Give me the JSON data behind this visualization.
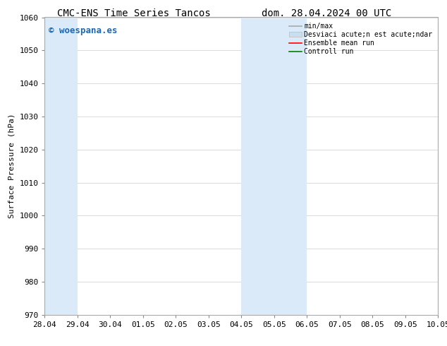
{
  "title_left": "CMC-ENS Time Series Tancos",
  "title_right": "dom. 28.04.2024 00 UTC",
  "ylabel": "Surface Pressure (hPa)",
  "ylim": [
    970,
    1060
  ],
  "yticks": [
    970,
    980,
    990,
    1000,
    1010,
    1020,
    1030,
    1040,
    1050,
    1060
  ],
  "xlim_start": 0,
  "xlim_end": 12,
  "xtick_labels": [
    "28.04",
    "29.04",
    "30.04",
    "01.05",
    "02.05",
    "03.05",
    "04.05",
    "05.05",
    "06.05",
    "07.05",
    "08.05",
    "09.05",
    "10.05"
  ],
  "xtick_positions": [
    0,
    1,
    2,
    3,
    4,
    5,
    6,
    7,
    8,
    9,
    10,
    11,
    12
  ],
  "shaded_regions": [
    {
      "xmin": 0.0,
      "xmax": 1.0,
      "color": "#daeaf8"
    },
    {
      "xmin": 6.0,
      "xmax": 8.0,
      "color": "#daeaf8"
    }
  ],
  "watermark_text": "© woespana.es",
  "watermark_color": "#1a6ab5",
  "legend_labels": [
    "min/max",
    "Desviaci acute;n est acute;ndar",
    "Ensemble mean run",
    "Controll run"
  ],
  "legend_line_colors": [
    "#aaaaaa",
    "#c8dff0",
    "#ff0000",
    "#008000"
  ],
  "bg_color": "#ffffff",
  "grid_color": "#cccccc",
  "title_fontsize": 10,
  "label_fontsize": 8,
  "tick_fontsize": 8,
  "watermark_fontsize": 9
}
